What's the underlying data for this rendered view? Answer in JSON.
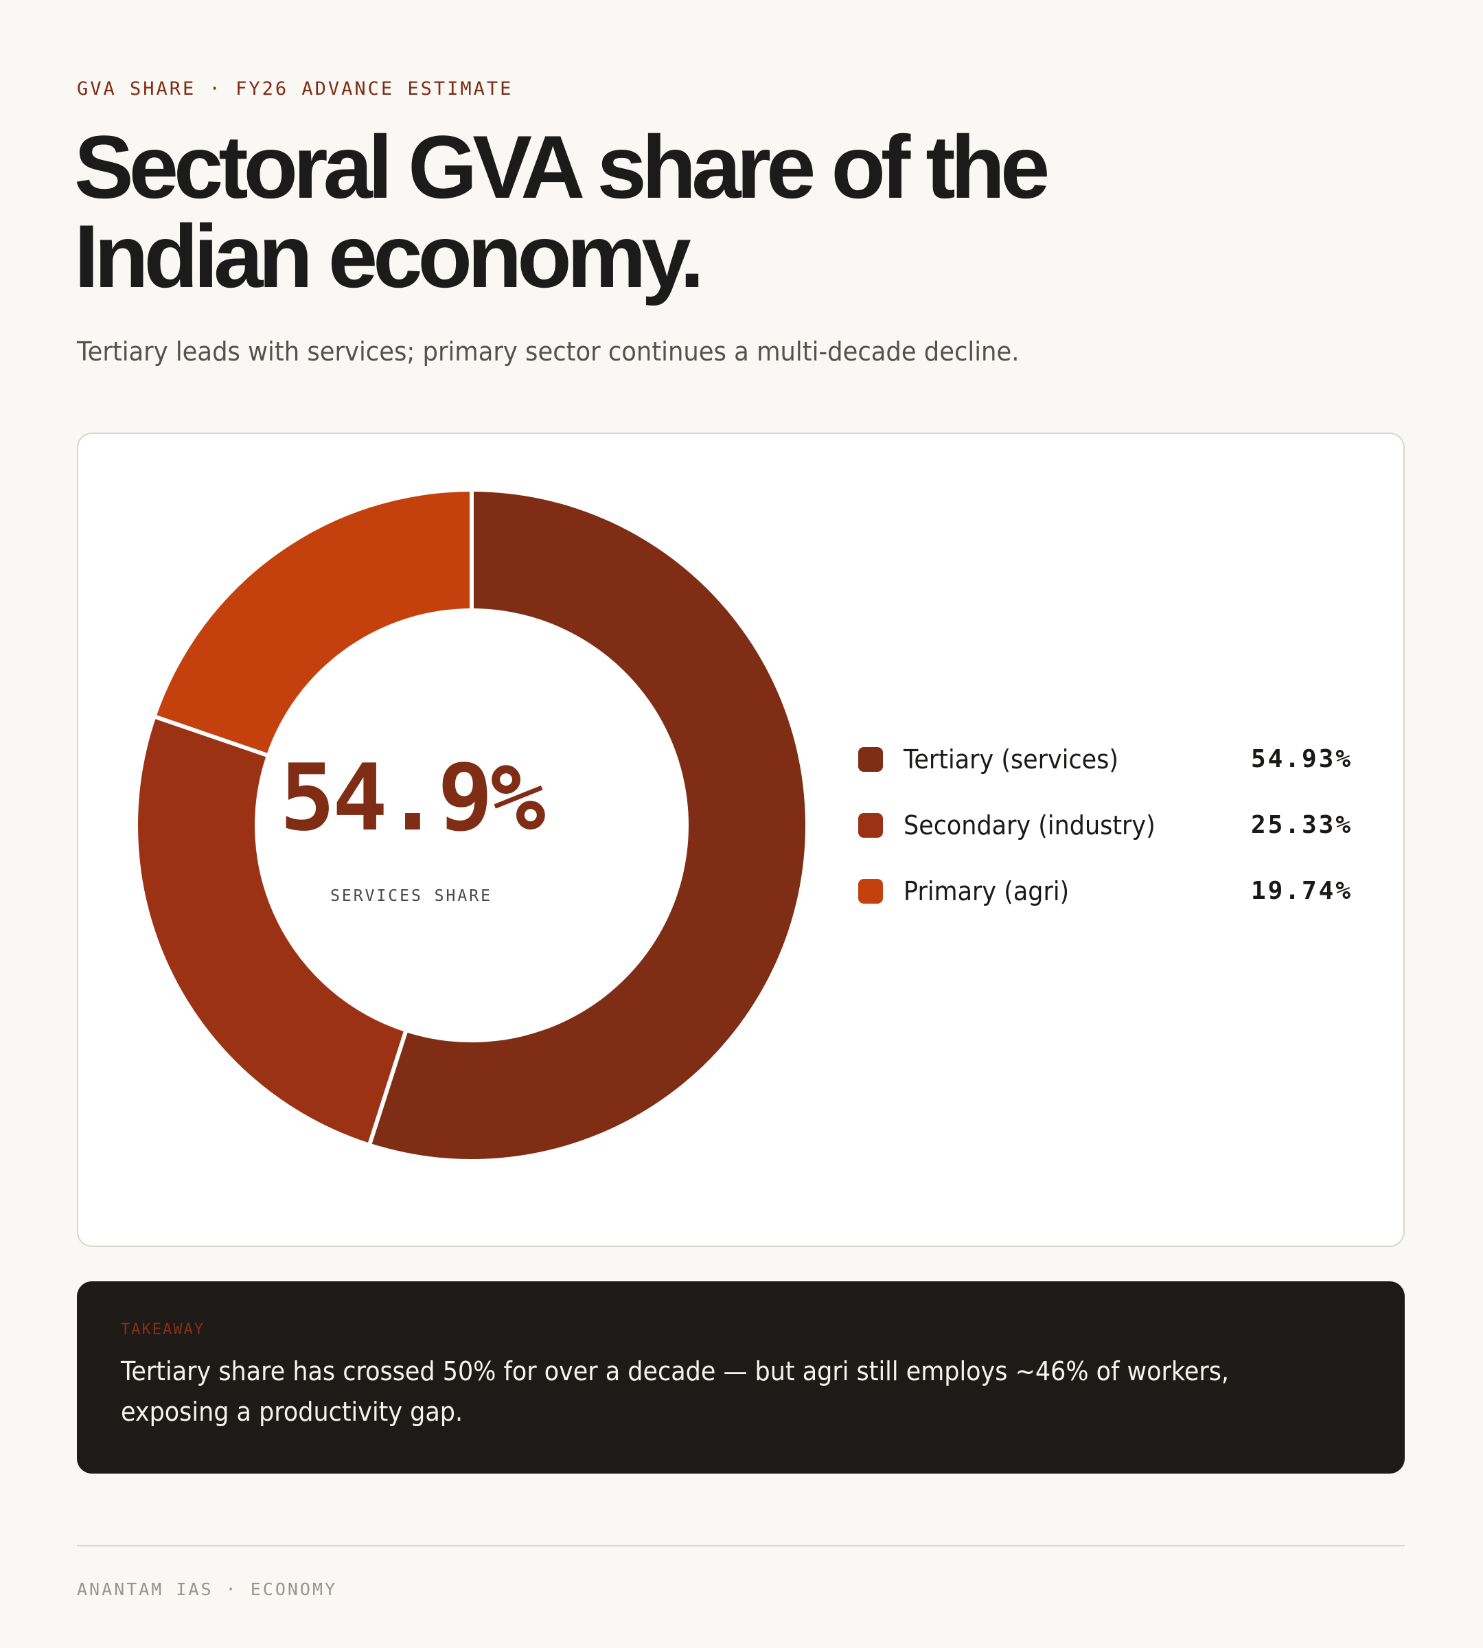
{
  "header": {
    "kicker": "GVA SHARE · FY26 ADVANCE ESTIMATE",
    "title": "Sectoral GVA share of the Indian economy.",
    "subtitle": "Tertiary leads with services; primary sector continues a multi-decade decline."
  },
  "chart_data": {
    "type": "pie",
    "variant": "donut",
    "start_angle_deg": 0,
    "direction": "clockwise",
    "center_value": "54.9%",
    "center_label": "SERVICES SHARE",
    "legend_position": "right",
    "slices": [
      {
        "name": "Tertiary (services)",
        "value": 54.93,
        "value_label": "54.93%",
        "color": "#7f2d14"
      },
      {
        "name": "Secondary (industry)",
        "value": 25.33,
        "value_label": "25.33%",
        "color": "#9b3214"
      },
      {
        "name": "Primary (agri)",
        "value": 19.74,
        "value_label": "19.74%",
        "color": "#c4410e"
      }
    ]
  },
  "takeaway": {
    "label": "TAKEAWAY",
    "text": "Tertiary share has crossed 50% for over a decade — but agri still employs ~46% of workers, exposing a productivity gap."
  },
  "footer": {
    "text": "ANANTAM IAS · ECONOMY"
  }
}
